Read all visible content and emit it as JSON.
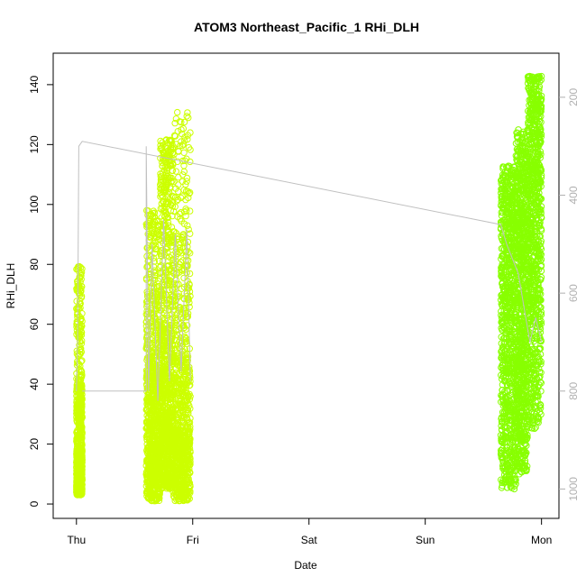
{
  "chart_data": {
    "type": "scatter",
    "title": "ATOM3 Northeast_Pacific_1 RHi_DLH",
    "xlabel": "Date",
    "ylabel": "RHi_DLH",
    "x_ticks": [
      {
        "label": "Thu",
        "value": 0
      },
      {
        "label": "Fri",
        "value": 1
      },
      {
        "label": "Sat",
        "value": 2
      },
      {
        "label": "Sun",
        "value": 3
      },
      {
        "label": "Mon",
        "value": 4
      }
    ],
    "xlim": [
      -0.2,
      4.15
    ],
    "ylim": [
      -4.8,
      150.5
    ],
    "y_ticks": [
      0,
      20,
      40,
      60,
      80,
      100,
      120,
      140
    ],
    "right_axis": {
      "label": "",
      "ticks": [
        200,
        400,
        600,
        800,
        1000
      ],
      "range": [
        110,
        1060
      ],
      "reversed": true,
      "color": "#b0b0b0"
    },
    "marker_color": "#ccff00",
    "marker_color_late": "#88ff00",
    "line_color": "#c0c0c0",
    "series": [
      {
        "type": "points",
        "segments": [
          {
            "x0": 0.0,
            "x1": 0.05,
            "bands": [
              [
                3,
                18,
                0.6
              ],
              [
                18,
                40,
                0.25
              ],
              [
                40,
                80,
                0.15
              ]
            ]
          },
          {
            "x0": 0.6,
            "x1": 0.72,
            "bands": [
              [
                1,
                20,
                0.35
              ],
              [
                20,
                45,
                0.35
              ],
              [
                45,
                70,
                0.18
              ],
              [
                70,
                98,
                0.12
              ]
            ]
          },
          {
            "x0": 0.72,
            "x1": 0.83,
            "bands": [
              [
                5,
                30,
                0.35
              ],
              [
                30,
                60,
                0.3
              ],
              [
                60,
                100,
                0.2
              ],
              [
                100,
                122,
                0.15
              ]
            ]
          },
          {
            "x0": 0.83,
            "x1": 0.98,
            "bands": [
              [
                1,
                25,
                0.45
              ],
              [
                25,
                50,
                0.25
              ],
              [
                50,
                90,
                0.2
              ],
              [
                90,
                131,
                0.1
              ]
            ]
          },
          {
            "x0": 3.65,
            "x1": 3.78,
            "bands": [
              [
                5,
                20,
                0.12
              ],
              [
                20,
                60,
                0.35
              ],
              [
                60,
                100,
                0.4
              ],
              [
                100,
                113,
                0.13
              ]
            ]
          },
          {
            "x0": 3.78,
            "x1": 3.88,
            "bands": [
              [
                10,
                40,
                0.25
              ],
              [
                40,
                80,
                0.35
              ],
              [
                80,
                110,
                0.3
              ],
              [
                110,
                125,
                0.1
              ]
            ]
          },
          {
            "x0": 3.88,
            "x1": 4.0,
            "bands": [
              [
                25,
                60,
                0.2
              ],
              [
                60,
                100,
                0.35
              ],
              [
                100,
                130,
                0.3
              ],
              [
                130,
                143,
                0.15
              ]
            ]
          }
        ]
      },
      {
        "type": "pressure_line",
        "points": [
          [
            0.0,
            800
          ],
          [
            0.01,
            700
          ],
          [
            0.02,
            300
          ],
          [
            0.05,
            290
          ],
          [
            3.65,
            460
          ],
          [
            3.7,
            500
          ],
          [
            3.8,
            560
          ],
          [
            3.9,
            700
          ],
          [
            3.95,
            650
          ],
          [
            4.0,
            700
          ]
        ],
        "extra_polyline": [
          [
            0.05,
            800
          ],
          [
            0.6,
            800
          ],
          [
            0.6,
            300
          ],
          [
            0.62,
            800
          ],
          [
            0.65,
            500
          ],
          [
            0.7,
            820
          ],
          [
            0.75,
            450
          ],
          [
            0.8,
            780
          ],
          [
            0.85,
            480
          ],
          [
            0.9,
            760
          ],
          [
            0.95,
            470
          ],
          [
            0.98,
            780
          ]
        ]
      }
    ]
  }
}
